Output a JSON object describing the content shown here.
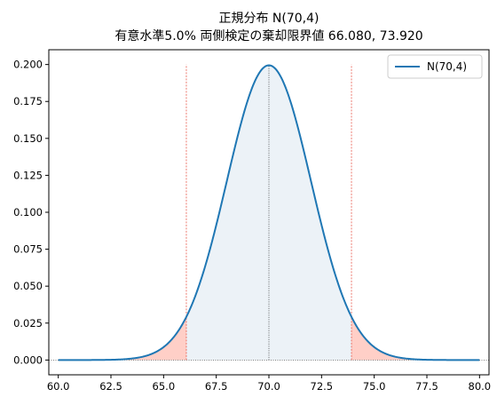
{
  "chart_data": {
    "type": "line",
    "title": "正規分布 N(70,4)",
    "subtitle": "有意水準5.0% 両側検定の棄却限界値 66.080, 73.920",
    "xlabel": "",
    "ylabel": "",
    "xlim": [
      59.55,
      80.45
    ],
    "ylim": [
      -0.01,
      0.21
    ],
    "x_ticks": [
      "60.0",
      "62.5",
      "65.0",
      "67.5",
      "70.0",
      "72.5",
      "75.0",
      "77.5",
      "80.0"
    ],
    "y_ticks": [
      "0.000",
      "0.025",
      "0.050",
      "0.075",
      "0.100",
      "0.125",
      "0.150",
      "0.175",
      "0.200"
    ],
    "distribution": {
      "mean": 70,
      "variance": 4,
      "sd": 2,
      "x_range": [
        60,
        80
      ]
    },
    "critical_values": [
      66.08,
      73.92
    ],
    "significance_level": 0.05,
    "mean_line": 70,
    "series": [
      {
        "name": "N(70,4)",
        "color": "#1f77b4"
      }
    ],
    "rejection_fill_color": "#ffcfc7",
    "acceptance_fill_color": "#ecf2f7",
    "critical_line_color": "#e8584a",
    "grid": false,
    "legend_position": "top-right"
  }
}
